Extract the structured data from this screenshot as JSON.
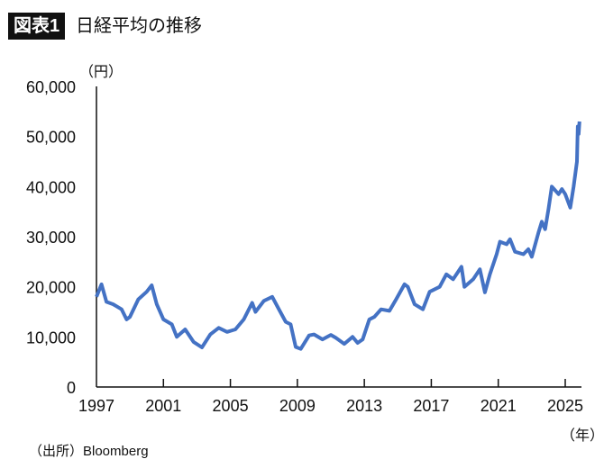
{
  "header": {
    "badge": "図表1",
    "title": "日経平均の推移"
  },
  "source": "（出所）Bloomberg",
  "chart_data": {
    "type": "line",
    "title": "日経平均の推移",
    "ylabel": "（円）",
    "xlabel": "（年）",
    "ylim": [
      0,
      60000
    ],
    "xlim": [
      1997,
      2025.9
    ],
    "yticks": [
      0,
      10000,
      20000,
      30000,
      40000,
      50000,
      60000
    ],
    "ytick_labels": [
      "0",
      "10,000",
      "20,000",
      "30,000",
      "40,000",
      "50,000",
      "60,000"
    ],
    "xticks": [
      1997,
      2001,
      2005,
      2009,
      2013,
      2017,
      2021,
      2025
    ],
    "xtick_labels": [
      "1997",
      "2001",
      "2005",
      "2009",
      "2013",
      "2017",
      "2021",
      "2025"
    ],
    "grid": false,
    "color": "#4472c4",
    "series": [
      {
        "x": [
          1997.0,
          1997.3,
          1997.6,
          1998.0,
          1998.5,
          1998.8,
          1999.0,
          1999.5,
          2000.0,
          2000.3,
          2000.6,
          2001.0,
          2001.5,
          2001.8,
          2002.3,
          2002.8,
          2003.3,
          2003.8,
          2004.3,
          2004.8,
          2005.3,
          2005.8,
          2006.3,
          2006.5,
          2007.0,
          2007.5,
          2007.9,
          2008.3,
          2008.6,
          2008.9,
          2009.2,
          2009.7,
          2010.0,
          2010.5,
          2011.0,
          2011.3,
          2011.8,
          2012.3,
          2012.6,
          2012.9,
          2013.3,
          2013.6,
          2014.0,
          2014.5,
          2014.9,
          2015.4,
          2015.6,
          2016.0,
          2016.5,
          2016.9,
          2017.5,
          2017.9,
          2018.3,
          2018.8,
          2018.98,
          2019.5,
          2019.9,
          2020.2,
          2020.5,
          2020.9,
          2021.1,
          2021.5,
          2021.7,
          2022.0,
          2022.5,
          2022.8,
          2023.0,
          2023.4,
          2023.6,
          2023.8,
          2024.0,
          2024.2,
          2024.6,
          2024.8,
          2025.0,
          2025.3,
          2025.5,
          2025.7,
          2025.75,
          2025.8,
          2025.85
        ],
        "values": [
          18000,
          20500,
          17000,
          16500,
          15500,
          13500,
          14000,
          17500,
          19000,
          20300,
          16500,
          13500,
          12500,
          10000,
          11500,
          9000,
          7900,
          10500,
          11800,
          11000,
          11500,
          13500,
          16800,
          15000,
          17200,
          18000,
          15500,
          13000,
          12500,
          8000,
          7600,
          10300,
          10500,
          9500,
          10400,
          9800,
          8600,
          10000,
          8800,
          9500,
          13500,
          14000,
          15500,
          15200,
          17500,
          20500,
          20000,
          16500,
          15500,
          19000,
          20000,
          22500,
          21500,
          24000,
          20000,
          21500,
          23500,
          18900,
          22500,
          26500,
          29000,
          28500,
          29500,
          27000,
          26500,
          27500,
          26000,
          30800,
          33000,
          31500,
          35500,
          40000,
          38500,
          39500,
          38500,
          35800,
          40000,
          45000,
          52000,
          50500,
          53000
        ]
      }
    ]
  }
}
